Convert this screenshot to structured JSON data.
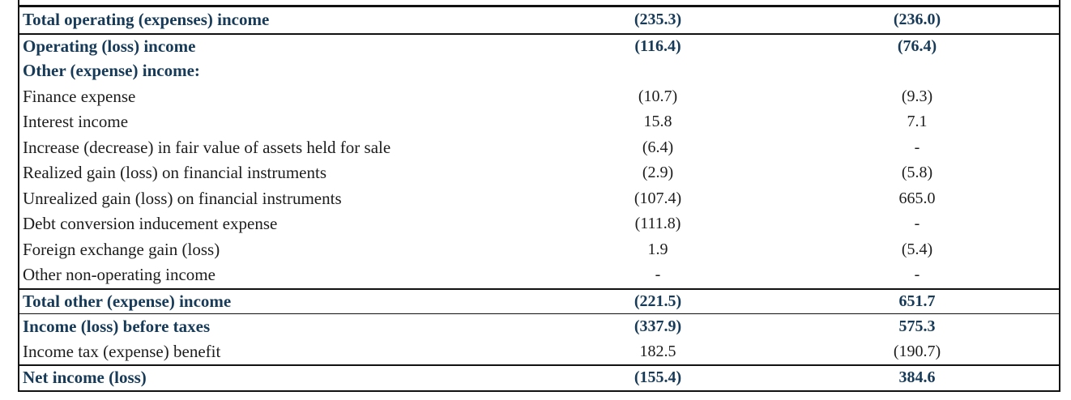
{
  "rows": [
    {
      "label": "Total operating (expenses) income",
      "col1": "(235.3)",
      "col2": "(236.0)",
      "bold": true
    },
    {
      "label": "Operating (loss) income",
      "col1": "(116.4)",
      "col2": "(76.4)",
      "bold": true
    },
    {
      "label": "Other (expense) income:",
      "col1": "",
      "col2": "",
      "bold": true
    },
    {
      "label": "Finance expense",
      "col1": "(10.7)",
      "col2": "(9.3)",
      "bold": false
    },
    {
      "label": "Interest income",
      "col1": "15.8",
      "col2": "7.1",
      "bold": false
    },
    {
      "label": "Increase (decrease) in fair value of assets held for sale",
      "col1": "(6.4)",
      "col2": "-",
      "bold": false
    },
    {
      "label": "Realized gain (loss) on financial instruments",
      "col1": "(2.9)",
      "col2": "(5.8)",
      "bold": false
    },
    {
      "label": "Unrealized gain (loss) on financial instruments",
      "col1": "(107.4)",
      "col2": "665.0",
      "bold": false
    },
    {
      "label": "Debt conversion inducement expense",
      "col1": "(111.8)",
      "col2": "-",
      "bold": false
    },
    {
      "label": "Foreign exchange gain (loss)",
      "col1": "1.9",
      "col2": "(5.4)",
      "bold": false
    },
    {
      "label": "Other non-operating income",
      "col1": "-",
      "col2": "-",
      "bold": false
    },
    {
      "label": "Total other (expense) income",
      "col1": "(221.5)",
      "col2": "651.7",
      "bold": true
    },
    {
      "label": "Income (loss) before taxes",
      "col1": "(337.9)",
      "col2": "575.3",
      "bold": true
    },
    {
      "label": "Income tax (expense) benefit",
      "col1": "182.5",
      "col2": "(190.7)",
      "bold": false
    },
    {
      "label": "Net income (loss)",
      "col1": "(155.4)",
      "col2": "384.6",
      "bold": true
    }
  ],
  "colors": {
    "bold_text": "#163a57",
    "text": "#1d1d1d",
    "border": "#111111"
  }
}
